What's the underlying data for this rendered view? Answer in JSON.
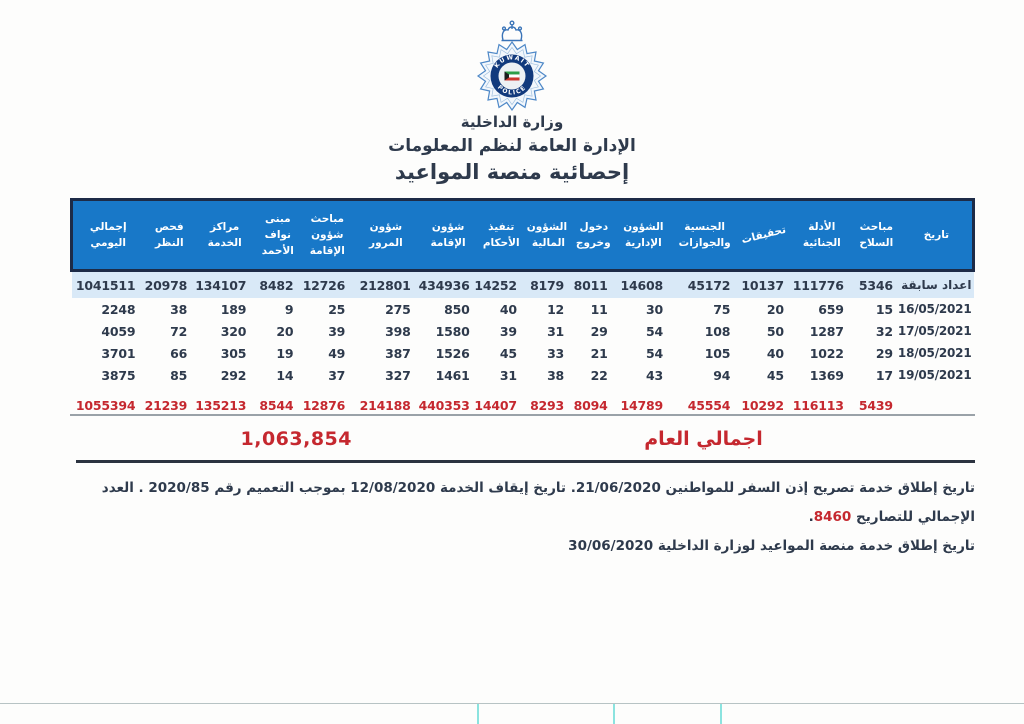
{
  "header": {
    "ministry": "وزارة الداخلية",
    "department": "الإدارة العامة لنظم المعلومات",
    "title": "إحصائية منصة المواعيد"
  },
  "logo": {
    "name": "kuwait-police-badge",
    "ring_text_top": "KUWAIT",
    "ring_text_bottom": "POLICE"
  },
  "colors": {
    "header_blue": "#1878c8",
    "header_border_navy": "#1d2b47",
    "light_row_blue": "#d9e9f7",
    "text_navy": "#2e3a4c",
    "accent_red": "#c5282f"
  },
  "table": {
    "columns": [
      {
        "label": "تاريخ",
        "values": [
          "اعداد سابقة",
          "16/05/2021",
          "17/05/2021",
          "18/05/2021",
          "19/05/2021"
        ],
        "total": ""
      },
      {
        "label": "مباحث السلاح",
        "values": [
          "5346",
          "15",
          "32",
          "29",
          "17"
        ],
        "total": "5439"
      },
      {
        "label": "الأدلة الجنائية",
        "values": [
          "111776",
          "659",
          "1287",
          "1022",
          "1369"
        ],
        "total": "116113"
      },
      {
        "label": "تحقيقات",
        "rotated": true,
        "values": [
          "10137",
          "20",
          "50",
          "40",
          "45"
        ],
        "total": "10292"
      },
      {
        "label": "الجنسية والجوازات",
        "values": [
          "45172",
          "75",
          "108",
          "105",
          "94"
        ],
        "total": "45554"
      },
      {
        "label": "الشؤون الإدارية",
        "values": [
          "14608",
          "30",
          "54",
          "54",
          "43"
        ],
        "total": "14789"
      },
      {
        "label": "دخول وخروج",
        "values": [
          "8011",
          "11",
          "29",
          "21",
          "22"
        ],
        "total": "8094"
      },
      {
        "label": "الشؤون المالية",
        "values": [
          "8179",
          "12",
          "31",
          "33",
          "38"
        ],
        "total": "8293"
      },
      {
        "label": "تنفيذ الأحكام",
        "values": [
          "14252",
          "40",
          "39",
          "45",
          "31"
        ],
        "total": "14407"
      },
      {
        "label": "شؤون الإقامة",
        "values": [
          "434936",
          "850",
          "1580",
          "1526",
          "1461"
        ],
        "total": "440353"
      },
      {
        "label": "شؤون المرور",
        "values": [
          "212801",
          "275",
          "398",
          "387",
          "327"
        ],
        "total": "214188"
      },
      {
        "label": "مباحث شؤون الإقامة",
        "values": [
          "12726",
          "25",
          "39",
          "49",
          "37"
        ],
        "total": "12876"
      },
      {
        "label": "مبنى نواف الأحمد",
        "values": [
          "8482",
          "9",
          "20",
          "19",
          "14"
        ],
        "total": "8544"
      },
      {
        "label": "مراكز الخدمة",
        "values": [
          "134107",
          "189",
          "320",
          "305",
          "292"
        ],
        "total": "135213"
      },
      {
        "label": "فحص النظر",
        "values": [
          "20978",
          "38",
          "72",
          "66",
          "85"
        ],
        "total": "21239"
      },
      {
        "label": "إجمالي اليومي",
        "values": [
          "1041511",
          "2248",
          "4059",
          "3701",
          "3875"
        ],
        "total": "1055394"
      }
    ]
  },
  "grand_total": {
    "value": "1,063,854",
    "label": "اجمالي العام"
  },
  "footnotes": {
    "line1_before": "تاريخ إطلاق خدمة تصريح إذن السفر للمواطنين 21/06/2020. تاريخ إيقاف الخدمة 12/08/2020 بموجب التعميم رقم 2020/85 . العدد الإجمالي للتصاريح",
    "line1_highlight": "8460",
    "line1_after": ".",
    "line2": "تاريخ إطلاق خدمة منصة المواعيد لوزارة الداخلية 30/06/2020"
  }
}
